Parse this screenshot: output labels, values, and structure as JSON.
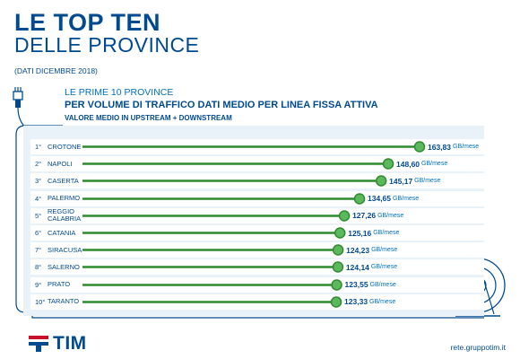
{
  "header": {
    "title_line1": "LE TOP TEN",
    "title_line2": "DELLE PROVINCE",
    "dati": "(DATI DICEMBRE 2018)",
    "sub1": "LE PRIME 10 PROVINCE",
    "sub2": "PER VOLUME DI TRAFFICO DATI MEDIO PER LINEA FISSA ATTIVA",
    "sub3": "VALORE MEDIO IN UPSTREAM + DOWNSTREAM"
  },
  "footer": {
    "logo_text": "TIM",
    "url": "rete.gruppotim.it"
  },
  "colors": {
    "brand_blue": "#004a8f",
    "light_blue": "#0070c0",
    "bar_green": "#2e8b2e",
    "dot_green": "#5cb85c",
    "panel_bg": "#eaf2f9",
    "row_bg": "#ffffff"
  },
  "chart_data": {
    "type": "bar",
    "orientation": "horizontal",
    "unit": "GB/mese",
    "categories": [
      "CROTONE",
      "NAPOLI",
      "CASERTA",
      "PALERMO",
      "REGGIO CALABRIA",
      "CATANIA",
      "SIRACUSA",
      "SALERNO",
      "PRATO",
      "TARANTO"
    ],
    "ranks": [
      "1°",
      "2°",
      "3°",
      "4°",
      "5°",
      "6°",
      "7°",
      "8°",
      "9°",
      "10°"
    ],
    "values": [
      163.83,
      148.6,
      145.17,
      134.65,
      127.26,
      125.16,
      124.23,
      124.14,
      123.55,
      123.33
    ],
    "value_labels": [
      "163,83",
      "148,60",
      "145,17",
      "134,65",
      "127,26",
      "125,16",
      "124,23",
      "124,14",
      "123,55",
      "123,33"
    ],
    "grid": false,
    "legend": "none"
  }
}
